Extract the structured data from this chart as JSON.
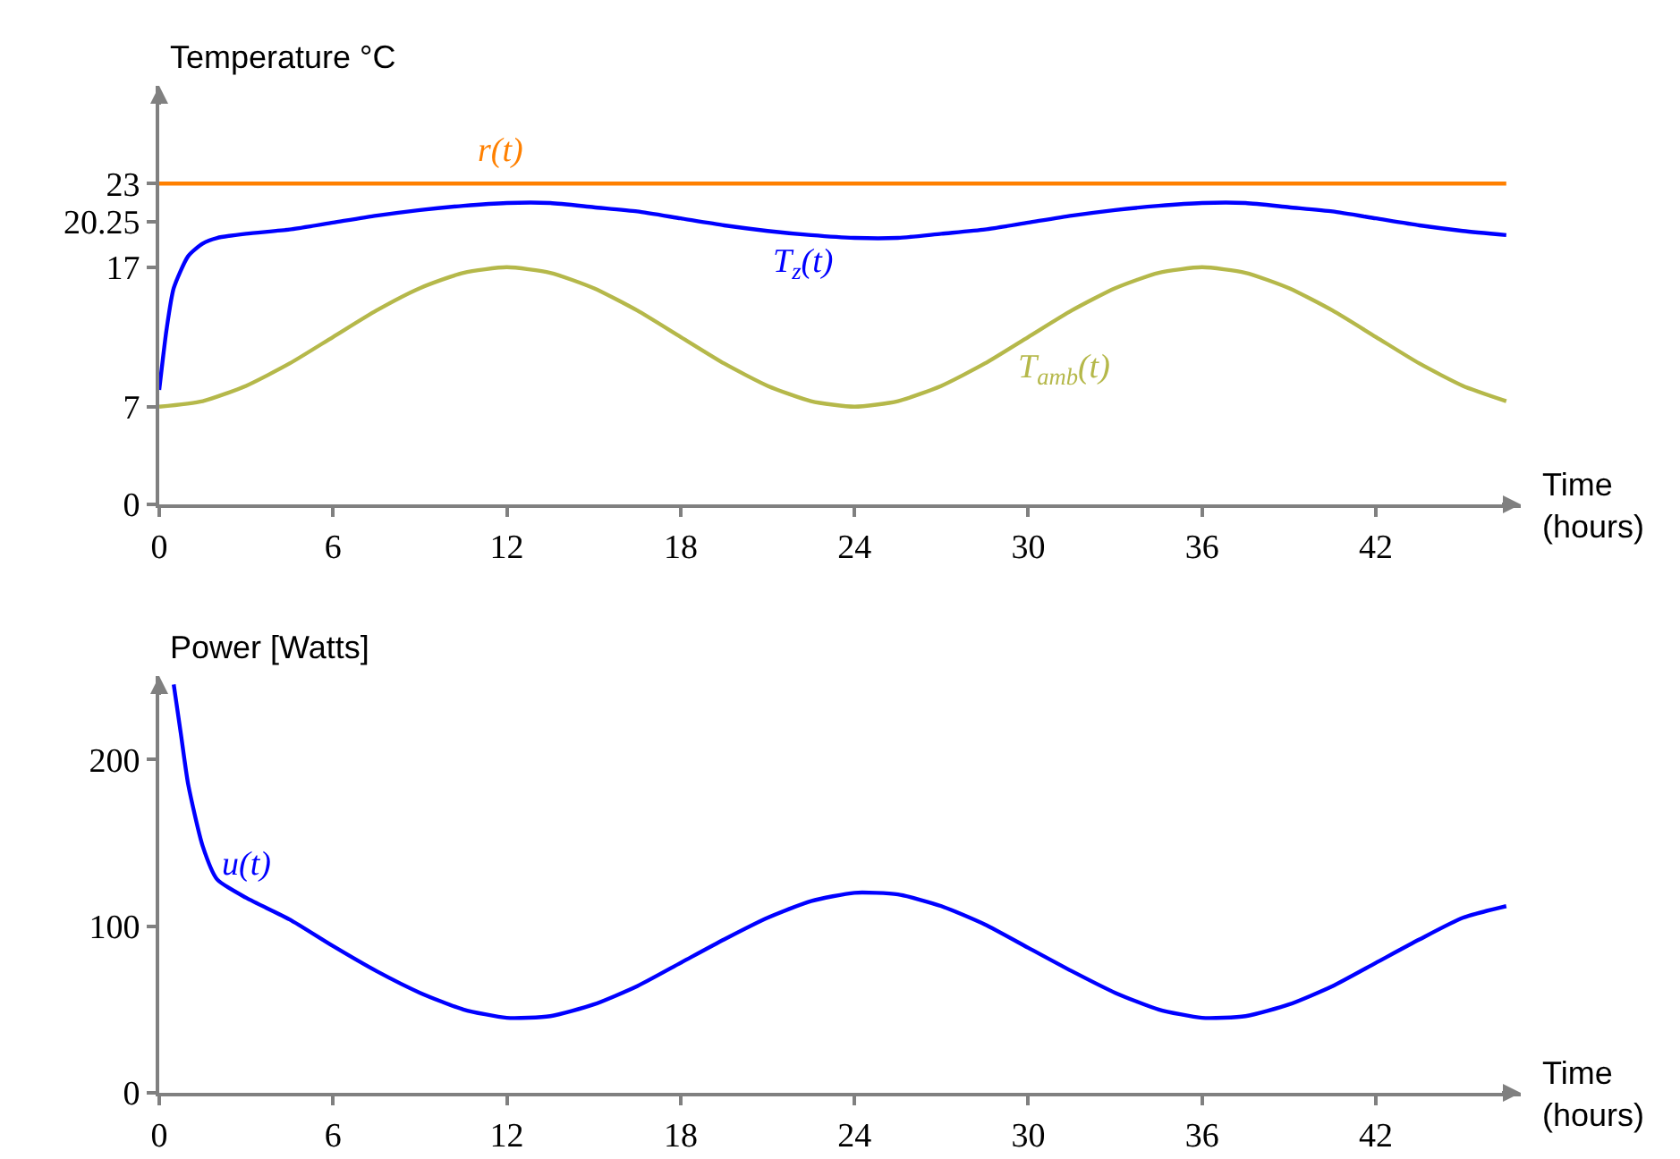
{
  "chart_data": [
    {
      "type": "line",
      "xlabel": "Time (hours)",
      "ylabel": "Temperature °C",
      "xlim": [
        0,
        47
      ],
      "xticks": [
        0,
        6,
        12,
        18,
        24,
        30,
        36,
        42
      ],
      "ylim": [
        0,
        30
      ],
      "yticks": [
        0,
        7,
        17,
        20.25,
        23
      ],
      "grid": false,
      "legend": false,
      "marker": "none",
      "line_style": "solid",
      "series": [
        {
          "name": "r(t)",
          "color": "#ff8000",
          "x": [
            0,
            46.5
          ],
          "values": [
            23,
            23
          ]
        },
        {
          "name": "T$_{z}$(t)",
          "color": "#0000ff",
          "x": [
            0,
            0.25,
            0.5,
            1,
            1.5,
            2,
            3,
            4.5,
            6,
            7.5,
            9,
            10.5,
            12,
            13.5,
            15,
            16.5,
            18,
            19.5,
            21,
            22.5,
            24,
            25.5,
            27,
            28.5,
            30,
            31.5,
            33,
            34.5,
            36,
            37.5,
            39,
            40.5,
            42,
            43.5,
            45,
            46.5
          ],
          "values": [
            8.2,
            12.5,
            15.5,
            17.8,
            18.7,
            19.1,
            19.4,
            19.7,
            20.2,
            20.7,
            21.1,
            21.4,
            21.6,
            21.6,
            21.3,
            21.0,
            20.5,
            20.0,
            19.6,
            19.3,
            19.1,
            19.1,
            19.4,
            19.7,
            20.2,
            20.7,
            21.1,
            21.4,
            21.6,
            21.6,
            21.3,
            21.0,
            20.5,
            20.0,
            19.6,
            19.3
          ]
        },
        {
          "name": "T$_{amb}$(t)",
          "color": "#b5b84a",
          "x": [
            0,
            1.5,
            3,
            4.5,
            6,
            7.5,
            9,
            10.5,
            12,
            13.5,
            15,
            16.5,
            18,
            19.5,
            21,
            22.5,
            24,
            25.5,
            27,
            28.5,
            30,
            31.5,
            33,
            34.5,
            36,
            37.5,
            39,
            40.5,
            42,
            43.5,
            45,
            46.5
          ],
          "values": [
            7,
            7.4,
            8.5,
            10.1,
            12,
            13.9,
            15.5,
            16.6,
            17,
            16.6,
            15.5,
            13.9,
            12,
            10.1,
            8.5,
            7.4,
            7,
            7.4,
            8.5,
            10.1,
            12,
            13.9,
            15.5,
            16.6,
            17,
            16.6,
            15.5,
            13.9,
            12,
            10.1,
            8.5,
            7.4
          ]
        }
      ]
    },
    {
      "type": "line",
      "xlabel": "Time (hours)",
      "ylabel": "Power [Watts]",
      "xlim": [
        0,
        47
      ],
      "xticks": [
        0,
        6,
        12,
        18,
        24,
        30,
        36,
        42
      ],
      "ylim": [
        0,
        250
      ],
      "yticks": [
        0,
        100,
        200
      ],
      "grid": false,
      "legend": false,
      "marker": "none",
      "line_style": "solid",
      "series": [
        {
          "name": "u(t)",
          "color": "#0000ff",
          "x": [
            0.5,
            0.75,
            1,
            1.5,
            2,
            3,
            4.5,
            6,
            7.5,
            9,
            10.5,
            12,
            13.5,
            15,
            16.5,
            18,
            19.5,
            21,
            22.5,
            24,
            25.5,
            27,
            28.5,
            30,
            31.5,
            33,
            34.5,
            36,
            37.5,
            39,
            40.5,
            42,
            43.5,
            45,
            46.5
          ],
          "values": [
            245,
            215,
            185,
            148,
            128,
            117,
            104,
            88,
            73,
            60,
            50,
            45,
            46,
            53,
            64,
            78,
            92,
            105,
            115,
            120,
            119,
            112,
            101,
            87,
            73,
            60,
            50,
            45,
            46,
            53,
            64,
            78,
            92,
            105,
            112
          ]
        }
      ]
    }
  ]
}
